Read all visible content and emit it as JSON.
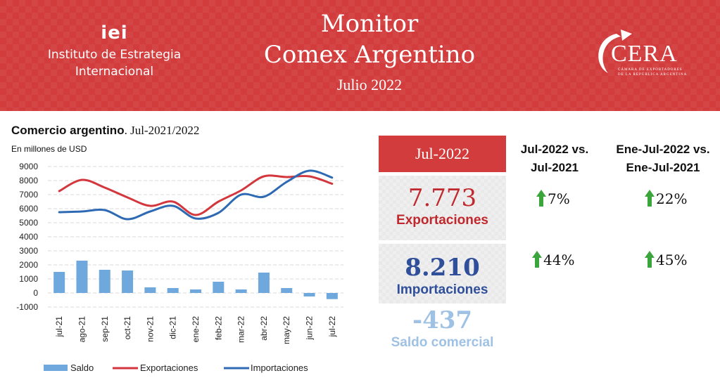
{
  "header": {
    "org_logo": "iei",
    "org_name_line1": "Instituto de Estrategia",
    "org_name_line2": "Internacional",
    "title_line1": "Monitor",
    "title_line2": "Comex Argentino",
    "period": "Julio 2022",
    "partner_logo": "CERA",
    "partner_sub_line1": "CÁMARA DE EXPORTADORES",
    "partner_sub_line2": "DE LA REPÚBLICA ARGENTINA"
  },
  "chart_heading": {
    "title_bold": "Comercio argentino",
    "title_rest": ". Jul-2021/2022",
    "units": "En millones de USD"
  },
  "chart_data": {
    "type": "bar+line",
    "categories": [
      "jul-21",
      "ago-21",
      "sep-21",
      "oct-21",
      "nov-21",
      "dic-21",
      "ene-22",
      "feb-22",
      "mar-22",
      "abr-22",
      "may-22",
      "jun-22",
      "jul-22"
    ],
    "series": [
      {
        "name": "Saldo",
        "type": "bar",
        "color": "#6fa8dc",
        "values": [
          1500,
          2300,
          1650,
          1600,
          400,
          350,
          250,
          800,
          250,
          1450,
          350,
          -250,
          -437
        ]
      },
      {
        "name": "Exportaciones",
        "type": "line",
        "color": "#d3363c",
        "values": [
          7250,
          8050,
          7500,
          6800,
          6200,
          6500,
          5550,
          6500,
          7300,
          8300,
          8250,
          8300,
          7773
        ]
      },
      {
        "name": "Importaciones",
        "type": "line",
        "color": "#2e6ab3",
        "values": [
          5750,
          5800,
          5900,
          5250,
          5800,
          6200,
          5300,
          5700,
          7000,
          6850,
          7900,
          8700,
          8210
        ]
      }
    ],
    "y_ticks": [
      9000,
      8000,
      7000,
      6000,
      5000,
      4000,
      3000,
      2000,
      1000,
      0,
      -1000
    ],
    "y_tick_labels": [
      "9000",
      "8000",
      "7000",
      "6000",
      "5000",
      "4000",
      "3000",
      "2000",
      "1000",
      "0",
      "-1000"
    ],
    "ylim": [
      -1000,
      9000
    ],
    "grid": true,
    "legend_position": "bottom"
  },
  "summary": {
    "period_label": "Jul-2022",
    "exports_value": "7.773",
    "exports_label": "Exportaciones",
    "imports_value": "8.210",
    "imports_label": "Importaciones",
    "balance_value": "-437",
    "balance_label": "Saldo comercial"
  },
  "comparison": {
    "col1_head_line1": "Jul-2022 vs.",
    "col1_head_line2": "Jul-2021",
    "col2_head_line1": "Ene-Jul-2022 vs.",
    "col2_head_line2": "Ene-Jul-2021",
    "exports_yoy": "7%",
    "exports_ytd": "22%",
    "imports_yoy": "44%",
    "imports_ytd": "45%",
    "arrow_icon": "arrow-up-icon",
    "arrow_color": "#3aa53a"
  },
  "colors": {
    "brand_red": "#d23c3c",
    "exports_red": "#c0282d",
    "imports_blue": "#2f4f9a",
    "balance_lightblue": "#9fc1e4"
  }
}
